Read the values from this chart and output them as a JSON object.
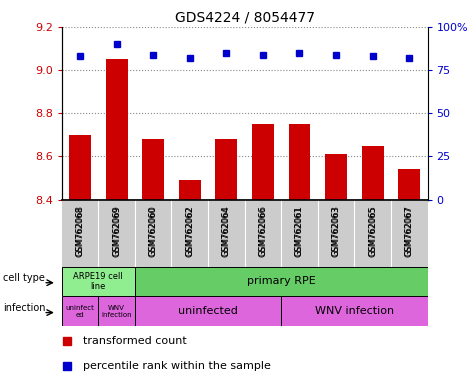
{
  "title": "GDS4224 / 8054477",
  "samples": [
    "GSM762068",
    "GSM762069",
    "GSM762060",
    "GSM762062",
    "GSM762064",
    "GSM762066",
    "GSM762061",
    "GSM762063",
    "GSM762065",
    "GSM762067"
  ],
  "transformed_counts": [
    8.7,
    9.05,
    8.68,
    8.49,
    8.68,
    8.75,
    8.75,
    8.61,
    8.65,
    8.54
  ],
  "percentile_ranks": [
    83,
    90,
    84,
    82,
    85,
    84,
    85,
    84,
    83,
    82
  ],
  "ylim": [
    8.4,
    9.2
  ],
  "yticks": [
    8.4,
    8.6,
    8.8,
    9.0,
    9.2
  ],
  "y2lim": [
    0,
    100
  ],
  "y2ticks": [
    0,
    25,
    50,
    75,
    100
  ],
  "bar_color": "#cc0000",
  "dot_color": "#0000cc",
  "bar_bottom": 8.4,
  "cell_type_arpe_bg": "#90ee90",
  "cell_type_prpe_bg": "#66cc66",
  "infection_bg": "#dd66dd",
  "xtick_bg": "#cccccc",
  "grid_color": "#888888",
  "tick_label_color_left": "#cc0000",
  "tick_label_color_right": "#0000cc",
  "title_fontsize": 10,
  "axis_fontsize": 8,
  "bar_width": 0.6
}
